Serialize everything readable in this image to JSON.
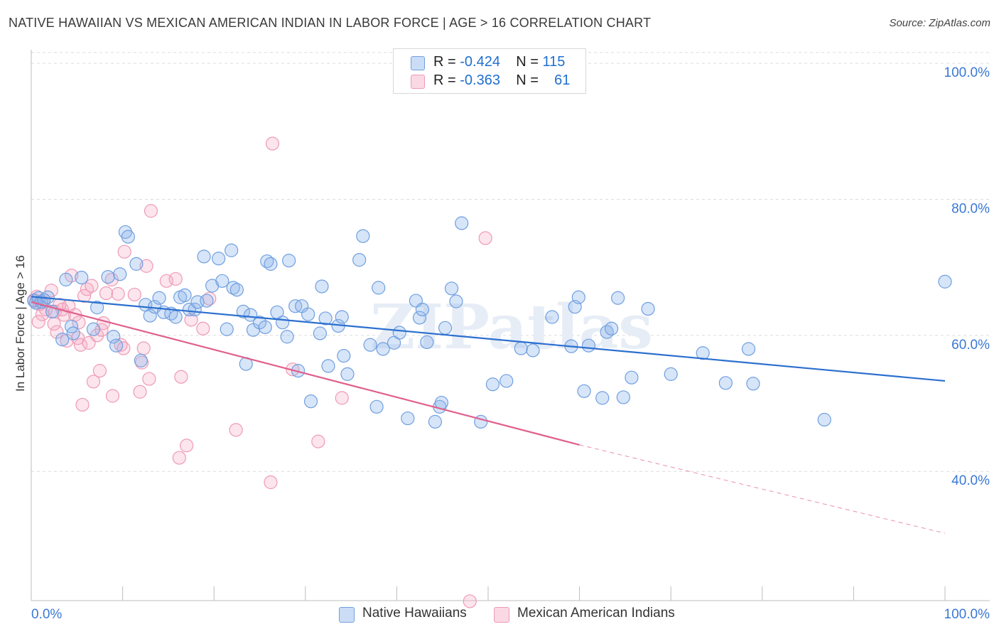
{
  "header": {
    "title": "NATIVE HAWAIIAN VS MEXICAN AMERICAN INDIAN IN LABOR FORCE | AGE > 16 CORRELATION CHART",
    "source": "Source: ZipAtlas.com"
  },
  "legend": {
    "rows": [
      {
        "r_label": "R = ",
        "r_value": "-0.424",
        "n_label": "N = ",
        "n_value": "115"
      },
      {
        "r_label": "R = ",
        "r_value": "-0.363",
        "n_label": "N = ",
        "n_value": "61"
      }
    ]
  },
  "chart_data": {
    "type": "scatter",
    "title": "NATIVE HAWAIIAN VS MEXICAN AMERICAN INDIAN IN LABOR FORCE | AGE > 16 CORRELATION CHART",
    "xlabel": "",
    "ylabel": "In Labor Force | Age > 16",
    "xlim": [
      0,
      100
    ],
    "ylim": [
      21,
      102
    ],
    "x_tick_labels": [
      "0.0%",
      "100.0%"
    ],
    "y_ticks": [
      40,
      60,
      80,
      100
    ],
    "y_tick_labels": [
      "40.0%",
      "60.0%",
      "80.0%",
      "100.0%"
    ],
    "grid": true,
    "legend_position": "top-center",
    "watermark": "ZIPatlas",
    "colors": {
      "blue": "#6f9fe0",
      "blue_fill": "rgba(140,180,235,0.35)",
      "blue_line": "#2b6fcf",
      "pink": "#ee9ab5",
      "pink_fill": "rgba(245,170,195,0.30)",
      "pink_line": "#e0608d",
      "tick_label": "#3a78d4"
    },
    "series": [
      {
        "name": "Native Hawaiians",
        "regression": {
          "x1": 0,
          "y1": 65.7,
          "x2": 100,
          "y2": 53.3
        },
        "points": [
          [
            0.3,
            65.1
          ],
          [
            0.5,
            64.8
          ],
          [
            0.8,
            65.5
          ],
          [
            1.1,
            64.9
          ],
          [
            1.4,
            65.2
          ],
          [
            1.8,
            65.6
          ],
          [
            2.3,
            63.5
          ],
          [
            3.4,
            59.4
          ],
          [
            3.8,
            68.2
          ],
          [
            4.4,
            61.3
          ],
          [
            5.5,
            68.5
          ],
          [
            4.6,
            60.3
          ],
          [
            6.8,
            60.9
          ],
          [
            7.2,
            64.1
          ],
          [
            8.4,
            68.6
          ],
          [
            9.0,
            59.8
          ],
          [
            9.7,
            69.0
          ],
          [
            9.3,
            58.5
          ],
          [
            10.3,
            75.2
          ],
          [
            10.6,
            74.5
          ],
          [
            11.5,
            70.5
          ],
          [
            12.0,
            56.3
          ],
          [
            12.5,
            64.5
          ],
          [
            13.0,
            62.9
          ],
          [
            13.5,
            64.2
          ],
          [
            14.0,
            65.5
          ],
          [
            14.5,
            63.4
          ],
          [
            15.3,
            63.2
          ],
          [
            15.8,
            62.7
          ],
          [
            16.3,
            65.6
          ],
          [
            16.8,
            65.9
          ],
          [
            17.3,
            63.8
          ],
          [
            17.9,
            63.8
          ],
          [
            18.2,
            64.9
          ],
          [
            18.9,
            71.6
          ],
          [
            19.2,
            65.1
          ],
          [
            19.8,
            67.3
          ],
          [
            20.5,
            71.3
          ],
          [
            20.9,
            68.0
          ],
          [
            21.4,
            60.9
          ],
          [
            21.9,
            72.5
          ],
          [
            22.1,
            67.0
          ],
          [
            22.5,
            66.7
          ],
          [
            23.2,
            63.5
          ],
          [
            23.5,
            55.8
          ],
          [
            24.0,
            63.0
          ],
          [
            24.3,
            60.8
          ],
          [
            25.0,
            61.9
          ],
          [
            25.6,
            61.2
          ],
          [
            25.8,
            70.9
          ],
          [
            26.2,
            70.5
          ],
          [
            26.9,
            63.4
          ],
          [
            27.5,
            61.9
          ],
          [
            28.0,
            59.8
          ],
          [
            28.2,
            71.0
          ],
          [
            28.9,
            64.3
          ],
          [
            29.2,
            54.8
          ],
          [
            29.6,
            64.3
          ],
          [
            30.3,
            63.1
          ],
          [
            30.6,
            50.3
          ],
          [
            31.6,
            60.3
          ],
          [
            31.8,
            67.2
          ],
          [
            32.2,
            62.5
          ],
          [
            32.5,
            55.5
          ],
          [
            33.6,
            61.4
          ],
          [
            34.0,
            62.7
          ],
          [
            34.2,
            57.0
          ],
          [
            34.6,
            54.3
          ],
          [
            35.9,
            71.1
          ],
          [
            36.3,
            74.6
          ],
          [
            37.1,
            58.6
          ],
          [
            37.8,
            49.5
          ],
          [
            38.0,
            67.0
          ],
          [
            38.5,
            58.0
          ],
          [
            39.7,
            58.9
          ],
          [
            40.3,
            60.4
          ],
          [
            41.2,
            47.8
          ],
          [
            42.1,
            65.1
          ],
          [
            42.5,
            62.6
          ],
          [
            42.8,
            63.8
          ],
          [
            43.3,
            59.0
          ],
          [
            44.2,
            47.3
          ],
          [
            44.7,
            49.5
          ],
          [
            44.9,
            50.1
          ],
          [
            45.3,
            61.1
          ],
          [
            46.0,
            66.9
          ],
          [
            46.5,
            65.0
          ],
          [
            47.1,
            76.5
          ],
          [
            49.2,
            47.3
          ],
          [
            50.5,
            52.8
          ],
          [
            52.0,
            53.3
          ],
          [
            53.6,
            58.1
          ],
          [
            54.9,
            57.8
          ],
          [
            57.0,
            62.7
          ],
          [
            59.1,
            58.4
          ],
          [
            59.5,
            64.2
          ],
          [
            59.9,
            65.6
          ],
          [
            60.5,
            51.8
          ],
          [
            61.0,
            58.5
          ],
          [
            62.5,
            50.8
          ],
          [
            63.0,
            60.5
          ],
          [
            63.5,
            61.0
          ],
          [
            64.2,
            65.5
          ],
          [
            64.8,
            50.9
          ],
          [
            65.7,
            53.8
          ],
          [
            67.5,
            63.9
          ],
          [
            70.0,
            54.3
          ],
          [
            73.5,
            57.4
          ],
          [
            76.0,
            53.0
          ],
          [
            78.5,
            58.0
          ],
          [
            79.0,
            52.9
          ],
          [
            86.8,
            47.6
          ],
          [
            100.0,
            67.9
          ]
        ]
      },
      {
        "name": "Mexican American Indians",
        "regression": {
          "x1": 0,
          "y1": 64.9,
          "x2": 60.0,
          "y2": 43.9,
          "dash_to_x": 100,
          "dash_to_y": 30.9
        },
        "points": [
          [
            0.3,
            65.2
          ],
          [
            0.6,
            65.7
          ],
          [
            0.9,
            64.6
          ],
          [
            1.3,
            64.9
          ],
          [
            1.6,
            63.8
          ],
          [
            2.2,
            66.6
          ],
          [
            2.6,
            63.5
          ],
          [
            2.5,
            61.7
          ],
          [
            2.8,
            60.5
          ],
          [
            3.1,
            64.5
          ],
          [
            3.4,
            63.8
          ],
          [
            3.6,
            63.0
          ],
          [
            4.1,
            64.3
          ],
          [
            4.4,
            68.8
          ],
          [
            4.8,
            63.0
          ],
          [
            5.1,
            59.6
          ],
          [
            5.2,
            61.9
          ],
          [
            5.4,
            58.6
          ],
          [
            5.6,
            49.8
          ],
          [
            5.8,
            65.8
          ],
          [
            6.1,
            66.8
          ],
          [
            6.3,
            58.9
          ],
          [
            6.6,
            67.3
          ],
          [
            6.8,
            53.2
          ],
          [
            7.2,
            60.0
          ],
          [
            7.5,
            54.8
          ],
          [
            7.7,
            60.8
          ],
          [
            7.9,
            61.8
          ],
          [
            8.2,
            66.2
          ],
          [
            8.8,
            68.2
          ],
          [
            8.9,
            51.1
          ],
          [
            9.5,
            66.1
          ],
          [
            9.8,
            58.6
          ],
          [
            10.1,
            58.1
          ],
          [
            10.2,
            72.3
          ],
          [
            11.3,
            66.0
          ],
          [
            11.9,
            51.7
          ],
          [
            12.1,
            56.0
          ],
          [
            12.3,
            58.1
          ],
          [
            12.6,
            70.2
          ],
          [
            12.9,
            53.6
          ],
          [
            13.1,
            78.3
          ],
          [
            14.8,
            68.0
          ],
          [
            15.8,
            68.3
          ],
          [
            16.2,
            42.0
          ],
          [
            16.4,
            53.9
          ],
          [
            17.0,
            43.8
          ],
          [
            19.5,
            65.4
          ],
          [
            22.4,
            46.1
          ],
          [
            26.2,
            38.4
          ],
          [
            26.4,
            88.2
          ],
          [
            28.6,
            55.0
          ],
          [
            31.4,
            44.4
          ],
          [
            34.0,
            50.8
          ],
          [
            48.0,
            20.9
          ],
          [
            49.7,
            74.3
          ],
          [
            17.5,
            62.3
          ],
          [
            18.8,
            61.0
          ],
          [
            3.9,
            59.2
          ],
          [
            1.2,
            63.1
          ],
          [
            0.8,
            62.0
          ]
        ]
      }
    ]
  },
  "bottom_legend": {
    "items": [
      "Native Hawaiians",
      "Mexican American Indians"
    ]
  }
}
